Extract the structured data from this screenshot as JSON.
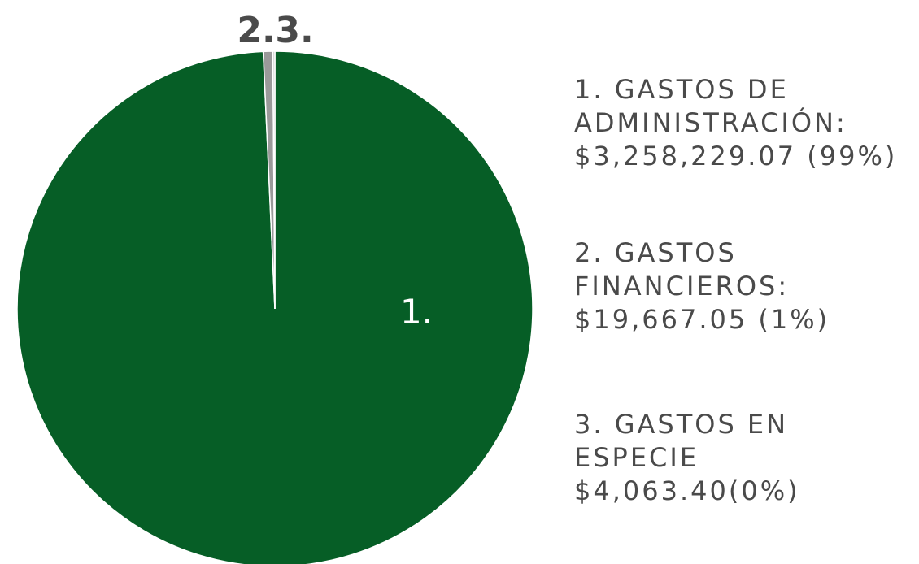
{
  "chart_data": {
    "type": "pie",
    "categories": [
      "1. GASTOS DE ADMINISTRACIÓN",
      "2. GASTOS FINANCIEROS",
      "3. GASTOS EN ESPECIE"
    ],
    "values": [
      3258229.07,
      19667.05,
      4063.4
    ],
    "colors": [
      "#065e26",
      "#9a9a9a",
      "#c9c9c9"
    ],
    "slice_labels": [
      "1.",
      "2.",
      "3."
    ],
    "legend_placement": "right",
    "legend": [
      {
        "lines": [
          "1. GASTOS DE",
          "ADMINISTRACIÓN:",
          "$3,258,229.07 (99%)"
        ]
      },
      {
        "lines": [
          "2. GASTOS",
          "FINANCIEROS:",
          "$19,667.05 (1%)"
        ]
      },
      {
        "lines": [
          "3. GASTOS EN",
          "ESPECIE",
          "$4,063.40(0%)"
        ]
      }
    ]
  }
}
